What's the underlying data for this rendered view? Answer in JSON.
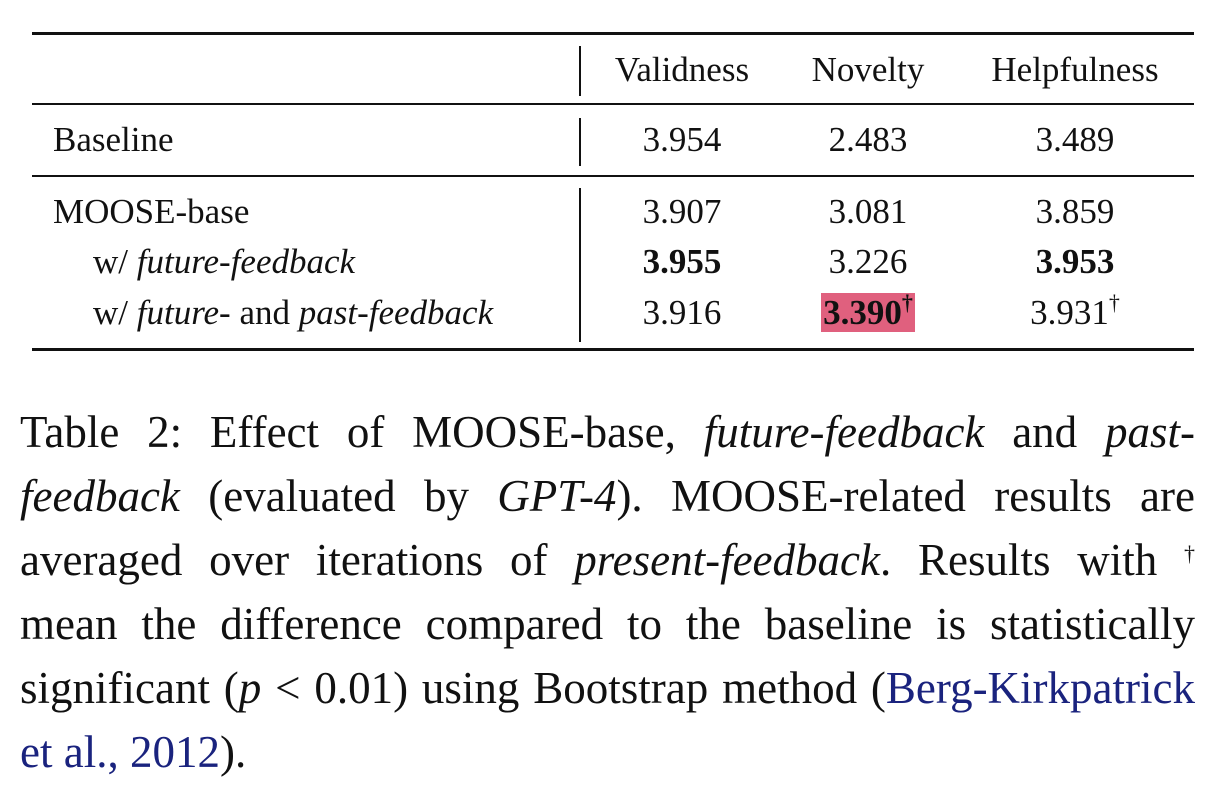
{
  "table": {
    "columns": [
      "Validness",
      "Novelty",
      "Helpfulness"
    ],
    "rows": [
      {
        "label": "Baseline",
        "values": [
          "3.954",
          "2.483",
          "3.489"
        ]
      },
      {
        "label": "MOOSE-base",
        "values": [
          "3.907",
          "3.081",
          "3.859"
        ]
      },
      {
        "label_prefix": "w/",
        "label_italic": "future-feedback",
        "values": [
          "3.955",
          "3.226",
          "3.953"
        ]
      },
      {
        "label_prefix": "w/",
        "label_italic_a": "future-",
        "label_mid": "and",
        "label_italic_b": "past-feedback",
        "values": [
          "3.916",
          "3.390",
          "3.931"
        ]
      }
    ],
    "dagger": "†"
  },
  "caption": {
    "p1": "Table 2: Effect of MOOSE-base, ",
    "i1": "future-feedback",
    "p2": " and ",
    "i2": "past-feedback",
    "p3": " (evaluated by ",
    "i3": "GPT-4",
    "p4": "). MOOSE-related results are averaged over iterations of ",
    "i4": "present-feedback",
    "p5": ". Results with ",
    "dagger": "†",
    "p6": " mean the difference compared to the baseline is statistically significant (",
    "i5": "p",
    "p7": " < 0.01) using Bootstrap method (",
    "cite": "Berg-Kirkpatrick et al., 2012",
    "p8": ")."
  }
}
